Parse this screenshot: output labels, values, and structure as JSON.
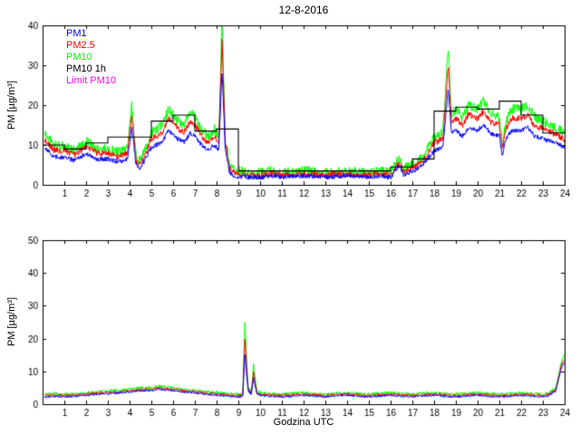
{
  "figure": {
    "title": "12-8-2016",
    "background": "#ffffff"
  },
  "chart_data": [
    {
      "type": "line",
      "title": "12-8-2016",
      "xlabel": "",
      "ylabel": "PM [µg/m³]",
      "xlim": [
        0,
        24
      ],
      "ylim": [
        0,
        40
      ],
      "xticks": [
        1,
        2,
        3,
        4,
        5,
        6,
        7,
        8,
        9,
        10,
        11,
        12,
        13,
        14,
        15,
        16,
        17,
        18,
        19,
        20,
        21,
        22,
        23,
        24
      ],
      "yticks": [
        0,
        10,
        20,
        30,
        40
      ],
      "grid": false,
      "legend": {
        "position": "top-left",
        "entries": [
          {
            "label": "PM1",
            "color": "#0000ff"
          },
          {
            "label": "PM2.5",
            "color": "#ff0000"
          },
          {
            "label": "PM10",
            "color": "#00ff00"
          },
          {
            "label": "PM10 1h",
            "color": "#000000"
          },
          {
            "label": "Limit PM10",
            "color": "#ff00ff"
          }
        ]
      },
      "x": [
        0.1,
        0.5,
        1,
        1.5,
        2,
        2.5,
        3,
        3.5,
        3.9,
        4.1,
        4.3,
        4.5,
        5,
        5.5,
        5.8,
        6.2,
        6.5,
        6.8,
        7,
        7.3,
        7.6,
        7.9,
        8.1,
        8.25,
        8.4,
        8.6,
        8.8,
        9,
        9.5,
        10,
        10.5,
        11,
        12,
        13,
        14,
        15,
        15.5,
        16,
        16.4,
        16.6,
        17,
        17.5,
        18,
        18.4,
        18.65,
        18.8,
        19,
        19.3,
        19.6,
        20,
        20.3,
        20.6,
        21,
        21.15,
        21.3,
        21.6,
        22,
        22.3,
        22.6,
        23,
        23.4,
        23.7,
        24
      ],
      "series": [
        {
          "name": "PM10",
          "color": "#00ff00",
          "noise": 1.3,
          "values": [
            13,
            10,
            9.5,
            8.5,
            11,
            9,
            9,
            8,
            9,
            20,
            7,
            6,
            13,
            15,
            19,
            16,
            15,
            18,
            17,
            14,
            12,
            14,
            12,
            42,
            12,
            5,
            4,
            3.5,
            3,
            3,
            3.5,
            3,
            3.5,
            3,
            3.5,
            3,
            3.5,
            3,
            7,
            4,
            5,
            7,
            12,
            13,
            35,
            18,
            19,
            17,
            20,
            19,
            21,
            18,
            17,
            10,
            16,
            19,
            19,
            20,
            17,
            16,
            15,
            14,
            13
          ]
        },
        {
          "name": "PM2.5",
          "color": "#ff0000",
          "noise": 0.8,
          "values": [
            11.4,
            8.8,
            8.4,
            7.5,
            9.7,
            7.9,
            7.9,
            7,
            7.9,
            17.6,
            6,
            5,
            11.4,
            13.2,
            16.7,
            14.1,
            13.2,
            15.8,
            15,
            12.3,
            10.6,
            12.3,
            10.6,
            37,
            10.6,
            4,
            3,
            2.8,
            2.4,
            2.4,
            2.8,
            2.4,
            2.8,
            2.4,
            2.8,
            2.4,
            2.8,
            2.4,
            6,
            3.2,
            4.2,
            6,
            10.6,
            11.4,
            30,
            15.8,
            16.7,
            15,
            17.6,
            16.7,
            18.5,
            15.8,
            15,
            8.8,
            14.1,
            16.7,
            16.7,
            17.6,
            15,
            14.1,
            13.2,
            12.3,
            11.4
          ]
        },
        {
          "name": "PM1",
          "color": "#0000ff",
          "noise": 0.6,
          "values": [
            9.4,
            7.2,
            6.8,
            6.1,
            7.9,
            6.5,
            6.5,
            5.8,
            6.5,
            14.4,
            5,
            4.2,
            9.4,
            10.8,
            13.7,
            11.5,
            10.8,
            13,
            12.2,
            10.1,
            8.6,
            10.1,
            8.6,
            29,
            8.6,
            3.2,
            2.2,
            2.1,
            1.9,
            1.9,
            2.3,
            1.9,
            2.3,
            1.9,
            2.3,
            1.9,
            2.3,
            1.9,
            5,
            2.6,
            3.4,
            5,
            8.6,
            9.4,
            24,
            13,
            13.7,
            12.2,
            14.4,
            13.7,
            15.1,
            13,
            12.2,
            7.2,
            11.5,
            13.7,
            13.7,
            14.4,
            12.2,
            11.5,
            10.8,
            10.1,
            9.4
          ]
        }
      ],
      "hourly_step": {
        "name": "PM10 1h",
        "color": "#000000",
        "values": [
          10,
          9,
          10.5,
          12,
          12,
          16,
          17.5,
          13.5,
          14,
          3.5,
          3.5,
          3.5,
          3.5,
          3.5,
          3.5,
          3.5,
          4.5,
          6.5,
          18.5,
          19.5,
          19,
          21,
          17.5,
          13
        ]
      },
      "limit": {
        "name": "Limit PM10",
        "color": "#ff00ff",
        "value": 50
      }
    },
    {
      "type": "line",
      "title": "",
      "xlabel": "Godzina UTC",
      "ylabel": "PM [µg/m³]",
      "xlim": [
        0,
        24
      ],
      "ylim": [
        0,
        50
      ],
      "xticks": [
        1,
        2,
        3,
        4,
        5,
        6,
        7,
        8,
        9,
        10,
        11,
        12,
        13,
        14,
        15,
        16,
        17,
        18,
        19,
        20,
        21,
        22,
        23,
        24
      ],
      "yticks": [
        0,
        10,
        20,
        30,
        40,
        50
      ],
      "grid": false,
      "x": [
        0.1,
        0.5,
        1,
        1.5,
        2,
        2.5,
        3,
        3.5,
        4,
        4.5,
        5,
        5.3,
        5.6,
        6,
        6.5,
        7,
        7.5,
        8,
        8.5,
        9,
        9.2,
        9.3,
        9.45,
        9.6,
        9.7,
        9.85,
        10,
        10.5,
        11,
        11.5,
        12,
        12.5,
        13,
        13.5,
        14,
        14.5,
        15,
        15.5,
        16,
        16.5,
        17,
        17.5,
        18,
        18.5,
        19,
        19.5,
        20,
        20.5,
        21,
        21.5,
        22,
        22.5,
        23,
        23.3,
        23.6,
        23.85,
        24
      ],
      "series": [
        {
          "name": "PM10",
          "color": "#00ff00",
          "noise": 0.5,
          "values": [
            3,
            3.2,
            3,
            3.2,
            3.5,
            3.8,
            4,
            4.2,
            4.5,
            5,
            5,
            5.5,
            5.2,
            5,
            4.5,
            4.2,
            3.8,
            3.5,
            3.2,
            3,
            3,
            25,
            5,
            4,
            12,
            4,
            3.5,
            3.2,
            3,
            3.3,
            3.5,
            3.2,
            3,
            3.4,
            3.5,
            3.2,
            3,
            3.3,
            3.5,
            3.2,
            3,
            3.3,
            3.5,
            3.2,
            3,
            3.3,
            3.5,
            3.2,
            3,
            3.2,
            3.5,
            3.2,
            3,
            3.5,
            5,
            13,
            15
          ]
        },
        {
          "name": "PM2.5",
          "color": "#ff0000",
          "noise": 0.35,
          "values": [
            2.6,
            2.8,
            2.6,
            2.8,
            3.1,
            3.4,
            3.6,
            3.8,
            4.1,
            4.5,
            4.5,
            5,
            4.7,
            4.5,
            4.1,
            3.8,
            3.4,
            3.1,
            2.8,
            2.6,
            2.6,
            20,
            4.4,
            3.5,
            10,
            3.5,
            3.1,
            2.8,
            2.6,
            2.9,
            3.1,
            2.8,
            2.6,
            3,
            3.1,
            2.8,
            2.6,
            2.9,
            3.1,
            2.8,
            2.6,
            2.9,
            3.1,
            2.8,
            2.6,
            2.9,
            3.1,
            2.8,
            2.6,
            2.8,
            3.1,
            2.8,
            2.6,
            3.1,
            4.5,
            12,
            13.8
          ]
        },
        {
          "name": "PM1",
          "color": "#0000ff",
          "noise": 0.3,
          "values": [
            2.2,
            2.4,
            2.2,
            2.4,
            2.7,
            3,
            3.2,
            3.4,
            3.7,
            4.1,
            4.1,
            4.6,
            4.3,
            4.1,
            3.7,
            3.4,
            3,
            2.7,
            2.4,
            2.2,
            2.2,
            15,
            3.9,
            3.1,
            8,
            3.1,
            2.7,
            2.4,
            2.2,
            2.5,
            2.7,
            2.4,
            2.2,
            2.6,
            2.7,
            2.4,
            2.2,
            2.5,
            2.7,
            2.4,
            2.2,
            2.5,
            2.7,
            2.4,
            2.2,
            2.5,
            2.7,
            2.4,
            2.2,
            2.4,
            2.7,
            2.4,
            2.2,
            2.7,
            4.1,
            11,
            12.8
          ]
        }
      ],
      "limit": {
        "name": "Limit PM10",
        "color": "#ff00ff",
        "value": 50
      }
    }
  ]
}
